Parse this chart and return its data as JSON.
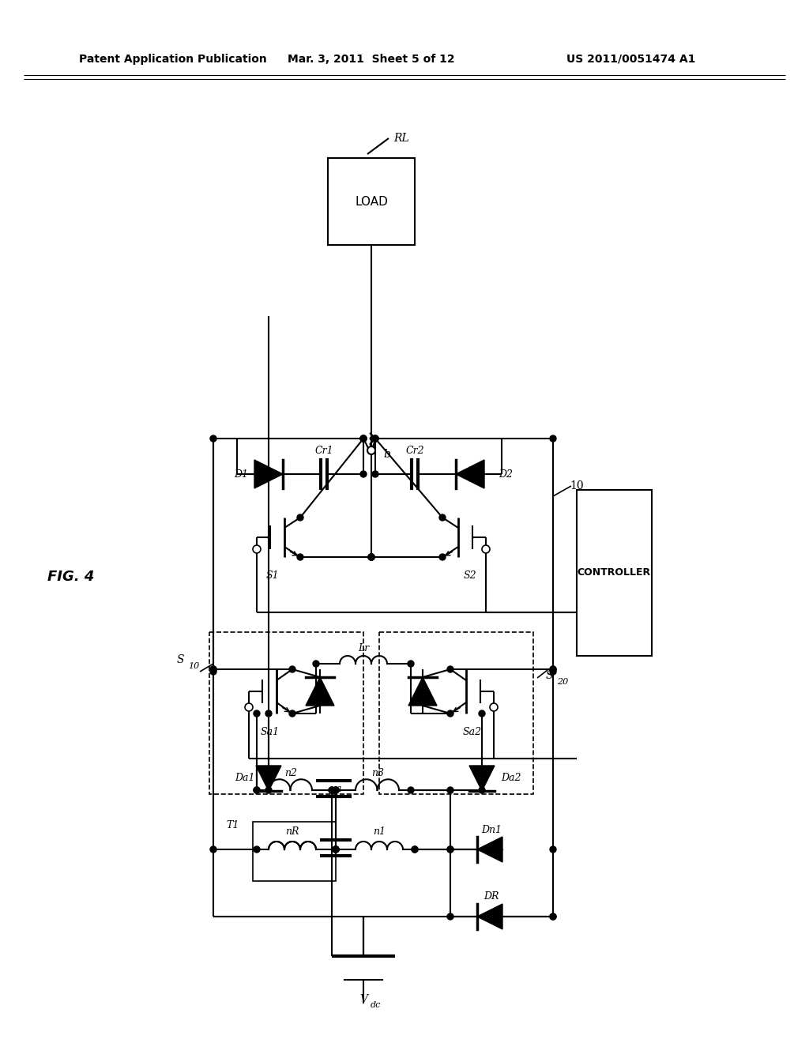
{
  "title_left": "Patent Application Publication",
  "title_mid": "Mar. 3, 2011  Sheet 5 of 12",
  "title_right": "US 2011/0051474 A1",
  "fig_label": "FIG. 4",
  "background": "#ffffff",
  "fig_width": 10.24,
  "fig_height": 13.2
}
